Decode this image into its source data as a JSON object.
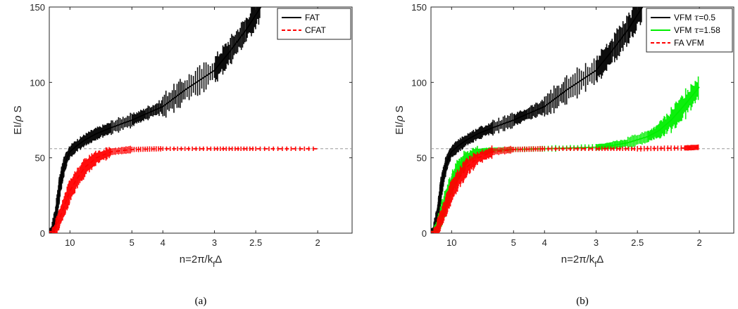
{
  "chart_data": [
    {
      "id": "a",
      "type": "line",
      "caption": "(a)",
      "xlabel": "n=2π/k_fΔ",
      "ylabel": "EI/ρ S",
      "x_scale": "reciprocal",
      "xticks": [
        10,
        5,
        4,
        3,
        2.5,
        2
      ],
      "xlim": [
        15,
        1.8
      ],
      "ylim": [
        0,
        150
      ],
      "yticks": [
        0,
        50,
        100,
        150
      ],
      "grid": false,
      "legend_position": "top-right",
      "reference_line": {
        "y": 56,
        "style": "dashed",
        "color": "#999999"
      },
      "series": [
        {
          "name": "FAT",
          "color": "#000000",
          "style": "solid",
          "band": true,
          "points": [
            [
              15,
              0
            ],
            [
              14,
              2
            ],
            [
              13,
              10
            ],
            [
              12.5,
              20
            ],
            [
              12,
              30
            ],
            [
              11.5,
              38
            ],
            [
              11,
              45
            ],
            [
              10.5,
              50
            ],
            [
              10,
              54
            ],
            [
              9,
              58
            ],
            [
              8,
              62
            ],
            [
              7,
              66
            ],
            [
              6,
              70
            ],
            [
              5,
              75
            ],
            [
              4.5,
              79
            ],
            [
              4,
              84
            ],
            [
              3.5,
              95
            ],
            [
              3,
              108
            ],
            [
              2.8,
              120
            ],
            [
              2.6,
              135
            ],
            [
              2.45,
              150
            ]
          ]
        },
        {
          "name": "CFAT",
          "color": "#ff0000",
          "style": "dashed",
          "band": true,
          "points": [
            [
              15,
              0
            ],
            [
              14,
              0
            ],
            [
              13,
              3
            ],
            [
              12,
              10
            ],
            [
              11,
              18
            ],
            [
              10,
              28
            ],
            [
              9,
              36
            ],
            [
              8,
              44
            ],
            [
              7,
              50
            ],
            [
              6,
              54
            ],
            [
              5,
              55.5
            ],
            [
              4,
              56
            ],
            [
              3,
              56
            ],
            [
              2.5,
              56
            ],
            [
              2,
              56
            ]
          ]
        }
      ]
    },
    {
      "id": "b",
      "type": "line",
      "caption": "(b)",
      "xlabel": "n=2π/k_fΔ",
      "ylabel": "EI/ρ S",
      "x_scale": "reciprocal",
      "xticks": [
        10,
        5,
        4,
        3,
        2.5,
        2
      ],
      "xlim": [
        15,
        1.8
      ],
      "ylim": [
        0,
        150
      ],
      "yticks": [
        0,
        50,
        100,
        150
      ],
      "grid": false,
      "legend_position": "top-right",
      "reference_line": {
        "y": 56,
        "style": "dashed",
        "color": "#999999"
      },
      "series": [
        {
          "name": "VFM τ=0.5",
          "color": "#000000",
          "style": "solid",
          "band": true,
          "points": [
            [
              15,
              0
            ],
            [
              14,
              2
            ],
            [
              13,
              10
            ],
            [
              12.5,
              20
            ],
            [
              12,
              30
            ],
            [
              11.5,
              38
            ],
            [
              11,
              45
            ],
            [
              10.5,
              50
            ],
            [
              10,
              54
            ],
            [
              9,
              58
            ],
            [
              8,
              62
            ],
            [
              7,
              66
            ],
            [
              6,
              70
            ],
            [
              5,
              75
            ],
            [
              4.5,
              79
            ],
            [
              4,
              84
            ],
            [
              3.5,
              95
            ],
            [
              3,
              108
            ],
            [
              2.8,
              120
            ],
            [
              2.6,
              135
            ],
            [
              2.45,
              150
            ]
          ]
        },
        {
          "name": "VFM τ=1.58",
          "color": "#00ee00",
          "style": "solid",
          "band": true,
          "points": [
            [
              15,
              0
            ],
            [
              14,
              0
            ],
            [
              13,
              4
            ],
            [
              12,
              12
            ],
            [
              11,
              22
            ],
            [
              10,
              32
            ],
            [
              9,
              42
            ],
            [
              8,
              50
            ],
            [
              7,
              54
            ],
            [
              6,
              55
            ],
            [
              5,
              55.5
            ],
            [
              4,
              56
            ],
            [
              3,
              57
            ],
            [
              2.8,
              58
            ],
            [
              2.6,
              60
            ],
            [
              2.4,
              64
            ],
            [
              2.3,
              68
            ],
            [
              2.2,
              75
            ],
            [
              2.1,
              85
            ],
            [
              2,
              97
            ]
          ]
        },
        {
          "name": "FA VFM",
          "color": "#ff0000",
          "style": "dashed",
          "band": true,
          "points": [
            [
              15,
              0
            ],
            [
              14,
              0
            ],
            [
              13,
              3
            ],
            [
              12,
              10
            ],
            [
              11,
              18
            ],
            [
              10,
              28
            ],
            [
              9,
              36
            ],
            [
              8,
              44
            ],
            [
              7,
              50
            ],
            [
              6,
              54
            ],
            [
              5,
              55.5
            ],
            [
              4,
              56
            ],
            [
              3,
              56
            ],
            [
              2.5,
              56
            ],
            [
              2.1,
              56.5
            ],
            [
              2,
              57
            ]
          ]
        }
      ]
    }
  ]
}
